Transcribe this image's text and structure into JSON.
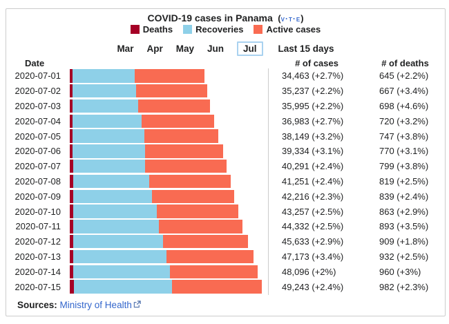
{
  "title": {
    "text": "COVID-19 cases in Panama",
    "vte_open": "(",
    "vte": "v·t·e",
    "vte_close": ")"
  },
  "legend": [
    {
      "label": "Deaths",
      "color": "#a50026"
    },
    {
      "label": "Recoveries",
      "color": "#8ed0e8"
    },
    {
      "label": "Active cases",
      "color": "#f96b52"
    }
  ],
  "tabs": {
    "months": [
      "Mar",
      "Apr",
      "May",
      "Jun",
      "Jul"
    ],
    "selected": "Jul",
    "range_label": "Last 15 days"
  },
  "table": {
    "headers": {
      "date": "Date",
      "cases": "# of cases",
      "deaths": "# of deaths"
    }
  },
  "chart_data": {
    "type": "bar",
    "orientation": "horizontal-stacked",
    "title": "COVID-19 cases in Panama",
    "categories": [
      "2020-07-01",
      "2020-07-02",
      "2020-07-03",
      "2020-07-04",
      "2020-07-05",
      "2020-07-06",
      "2020-07-07",
      "2020-07-08",
      "2020-07-09",
      "2020-07-10",
      "2020-07-11",
      "2020-07-12",
      "2020-07-13",
      "2020-07-14",
      "2020-07-15"
    ],
    "totals": [
      34463,
      35237,
      35995,
      36983,
      38149,
      39334,
      40291,
      41251,
      42216,
      43257,
      44332,
      45633,
      47173,
      48096,
      49243
    ],
    "max_total": 49243,
    "series": [
      {
        "name": "Deaths",
        "color": "#a50026",
        "values": [
          645,
          667,
          698,
          720,
          747,
          770,
          799,
          819,
          839,
          863,
          893,
          909,
          932,
          960,
          982
        ]
      },
      {
        "name": "Recoveries",
        "color": "#8ed0e8",
        "estimated_from_bar_lengths": true,
        "values": [
          16000,
          16400,
          16900,
          17700,
          18300,
          18500,
          18600,
          19600,
          20300,
          21400,
          22000,
          23000,
          23900,
          24700,
          25200
        ]
      },
      {
        "name": "Active cases",
        "color": "#f96b52",
        "estimated_from_bar_lengths": true,
        "values": [
          17818,
          18170,
          18397,
          18563,
          19102,
          20064,
          20892,
          20832,
          21077,
          20994,
          21439,
          21724,
          22341,
          22436,
          23061
        ]
      }
    ],
    "cases_labels": [
      "34,463 (+2.7%)",
      "35,237 (+2.2%)",
      "35,995 (+2.2%)",
      "36,983 (+2.7%)",
      "38,149 (+3.2%)",
      "39,334 (+3.1%)",
      "40,291 (+2.4%)",
      "41,251 (+2.4%)",
      "42,216 (+2.3%)",
      "43,257 (+2.5%)",
      "44,332 (+2.5%)",
      "45,633 (+2.9%)",
      "47,173 (+3.4%)",
      "48,096 (+2%)",
      "49,243 (+2.4%)"
    ],
    "deaths_labels": [
      "645 (+2.2%)",
      "667 (+3.4%)",
      "698 (+4.6%)",
      "720 (+3.2%)",
      "747 (+3.8%)",
      "770 (+3.1%)",
      "799 (+3.8%)",
      "819 (+2.5%)",
      "839 (+2.4%)",
      "863 (+2.9%)",
      "893 (+3.5%)",
      "909 (+1.8%)",
      "932 (+2.5%)",
      "960 (+3%)",
      "982 (+2.3%)"
    ],
    "legend_position": "top",
    "grid": false
  },
  "sources": {
    "label": "Sources:",
    "link": "Ministry of Health"
  }
}
